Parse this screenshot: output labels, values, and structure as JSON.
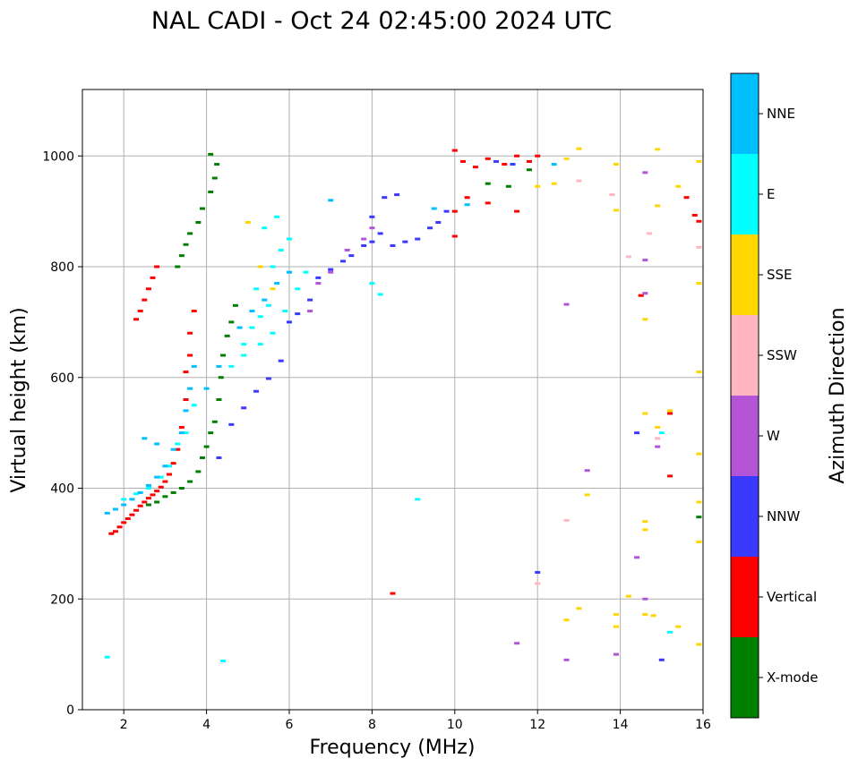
{
  "chart_data": {
    "type": "scatter",
    "title": "NAL CADI - Oct 24 02:45:00 2024 UTC",
    "xlabel": "Frequency (MHz)",
    "ylabel": "Virtual height (km)",
    "xlim": [
      1,
      16
    ],
    "ylim": [
      0,
      1120
    ],
    "xticks": [
      2,
      4,
      6,
      8,
      10,
      12,
      14,
      16
    ],
    "yticks": [
      0,
      200,
      400,
      600,
      800,
      1000
    ],
    "grid": true,
    "colorbar": {
      "title": "Azimuth Direction",
      "categories": [
        {
          "label": "X-mode",
          "color": "#008000"
        },
        {
          "label": "Vertical",
          "color": "#ff0000"
        },
        {
          "label": "NNW",
          "color": "#3a3aff"
        },
        {
          "label": "W",
          "color": "#b455d8"
        },
        {
          "label": "SSW",
          "color": "#ffb6c1"
        },
        {
          "label": "SSE",
          "color": "#ffd700"
        },
        {
          "label": "E",
          "color": "#00ffff"
        },
        {
          "label": "NNE",
          "color": "#00bfff"
        }
      ]
    },
    "series": [
      {
        "name": "X-mode",
        "points": [
          [
            2.6,
            370
          ],
          [
            2.8,
            375
          ],
          [
            3.0,
            385
          ],
          [
            3.2,
            392
          ],
          [
            3.4,
            400
          ],
          [
            3.6,
            412
          ],
          [
            3.8,
            430
          ],
          [
            3.9,
            455
          ],
          [
            4.0,
            475
          ],
          [
            4.1,
            500
          ],
          [
            4.2,
            520
          ],
          [
            4.3,
            560
          ],
          [
            4.35,
            600
          ],
          [
            4.4,
            640
          ],
          [
            4.5,
            675
          ],
          [
            4.6,
            700
          ],
          [
            4.7,
            730
          ],
          [
            3.4,
            820
          ],
          [
            3.5,
            840
          ],
          [
            3.6,
            860
          ],
          [
            3.3,
            800
          ],
          [
            3.8,
            880
          ],
          [
            3.9,
            905
          ],
          [
            4.1,
            935
          ],
          [
            4.2,
            960
          ],
          [
            4.25,
            985
          ],
          [
            4.1,
            1003
          ],
          [
            11.3,
            945
          ],
          [
            11.8,
            975
          ],
          [
            10.8,
            950
          ],
          [
            15.9,
            348
          ]
        ]
      },
      {
        "name": "Vertical",
        "points": [
          [
            1.7,
            318
          ],
          [
            1.8,
            322
          ],
          [
            1.9,
            330
          ],
          [
            2.0,
            338
          ],
          [
            2.1,
            345
          ],
          [
            2.2,
            352
          ],
          [
            2.3,
            360
          ],
          [
            2.4,
            368
          ],
          [
            2.5,
            375
          ],
          [
            2.6,
            382
          ],
          [
            2.7,
            388
          ],
          [
            2.8,
            395
          ],
          [
            2.9,
            402
          ],
          [
            3.0,
            412
          ],
          [
            3.1,
            425
          ],
          [
            3.2,
            445
          ],
          [
            3.3,
            470
          ],
          [
            3.4,
            510
          ],
          [
            3.5,
            560
          ],
          [
            3.5,
            610
          ],
          [
            3.6,
            640
          ],
          [
            3.6,
            680
          ],
          [
            3.7,
            720
          ],
          [
            2.3,
            705
          ],
          [
            2.4,
            720
          ],
          [
            2.5,
            740
          ],
          [
            2.6,
            760
          ],
          [
            2.7,
            780
          ],
          [
            2.8,
            800
          ],
          [
            8.5,
            210
          ],
          [
            10.0,
            1010
          ],
          [
            10.2,
            990
          ],
          [
            10.5,
            980
          ],
          [
            10.8,
            995
          ],
          [
            11.2,
            985
          ],
          [
            11.5,
            1000
          ],
          [
            11.8,
            990
          ],
          [
            12.0,
            1000
          ],
          [
            10.0,
            900
          ],
          [
            10.3,
            925
          ],
          [
            10.8,
            915
          ],
          [
            11.5,
            900
          ],
          [
            10.0,
            855
          ],
          [
            15.2,
            535
          ],
          [
            15.2,
            422
          ],
          [
            15.6,
            925
          ],
          [
            15.8,
            893
          ],
          [
            15.9,
            882
          ],
          [
            14.5,
            748
          ]
        ]
      },
      {
        "name": "NNW",
        "points": [
          [
            4.3,
            455
          ],
          [
            4.6,
            515
          ],
          [
            4.9,
            545
          ],
          [
            5.2,
            575
          ],
          [
            5.5,
            598
          ],
          [
            5.8,
            630
          ],
          [
            6.0,
            700
          ],
          [
            6.2,
            715
          ],
          [
            6.5,
            740
          ],
          [
            6.7,
            780
          ],
          [
            7.0,
            795
          ],
          [
            7.3,
            810
          ],
          [
            7.5,
            820
          ],
          [
            7.8,
            838
          ],
          [
            8.0,
            845
          ],
          [
            8.2,
            860
          ],
          [
            8.5,
            838
          ],
          [
            8.8,
            845
          ],
          [
            9.1,
            850
          ],
          [
            9.4,
            870
          ],
          [
            9.6,
            880
          ],
          [
            9.8,
            900
          ],
          [
            8.0,
            890
          ],
          [
            8.3,
            925
          ],
          [
            8.6,
            930
          ],
          [
            12.0,
            248
          ],
          [
            14.4,
            500
          ],
          [
            15.0,
            90
          ],
          [
            11.0,
            990
          ],
          [
            11.4,
            985
          ]
        ]
      },
      {
        "name": "W",
        "points": [
          [
            6.5,
            720
          ],
          [
            6.7,
            770
          ],
          [
            7.0,
            790
          ],
          [
            7.4,
            830
          ],
          [
            7.8,
            850
          ],
          [
            8.0,
            870
          ],
          [
            12.7,
            732
          ],
          [
            13.2,
            432
          ],
          [
            14.4,
            275
          ],
          [
            14.6,
            200
          ],
          [
            14.9,
            475
          ],
          [
            11.5,
            120
          ],
          [
            12.7,
            90
          ],
          [
            13.9,
            100
          ],
          [
            14.6,
            752
          ],
          [
            14.6,
            812
          ],
          [
            14.6,
            970
          ]
        ]
      },
      {
        "name": "SSW",
        "points": [
          [
            12.7,
            342
          ],
          [
            12.0,
            228
          ],
          [
            13.0,
            955
          ],
          [
            13.8,
            930
          ],
          [
            14.2,
            818
          ],
          [
            14.7,
            860
          ],
          [
            15.9,
            835
          ],
          [
            14.9,
            490
          ]
        ]
      },
      {
        "name": "SSE",
        "points": [
          [
            13.0,
            1013
          ],
          [
            12.7,
            995
          ],
          [
            13.9,
            985
          ],
          [
            14.9,
            1012
          ],
          [
            15.4,
            945
          ],
          [
            15.9,
            990
          ],
          [
            15.9,
            770
          ],
          [
            15.9,
            610
          ],
          [
            15.9,
            462
          ],
          [
            15.9,
            375
          ],
          [
            15.9,
            303
          ],
          [
            15.9,
            118
          ],
          [
            15.4,
            150
          ],
          [
            14.6,
            340
          ],
          [
            14.6,
            325
          ],
          [
            13.2,
            388
          ],
          [
            13.9,
            172
          ],
          [
            13.9,
            150
          ],
          [
            14.6,
            172
          ],
          [
            14.2,
            205
          ],
          [
            15.2,
            540
          ],
          [
            14.9,
            510
          ],
          [
            14.6,
            535
          ],
          [
            14.8,
            170
          ],
          [
            12.7,
            162
          ],
          [
            13.0,
            183
          ],
          [
            14.6,
            705
          ],
          [
            14.9,
            910
          ],
          [
            13.9,
            902
          ],
          [
            12.0,
            945
          ],
          [
            12.4,
            950
          ],
          [
            5.0,
            880
          ],
          [
            5.3,
            800
          ],
          [
            5.6,
            760
          ]
        ]
      },
      {
        "name": "E",
        "points": [
          [
            1.6,
            95
          ],
          [
            4.4,
            88
          ],
          [
            9.1,
            380
          ],
          [
            15.2,
            140
          ],
          [
            15.0,
            500
          ],
          [
            4.9,
            660
          ],
          [
            5.1,
            690
          ],
          [
            5.3,
            710
          ],
          [
            5.5,
            730
          ],
          [
            5.2,
            760
          ],
          [
            5.6,
            800
          ],
          [
            5.8,
            830
          ],
          [
            6.0,
            850
          ],
          [
            5.4,
            870
          ],
          [
            5.7,
            890
          ],
          [
            4.6,
            620
          ],
          [
            4.9,
            640
          ],
          [
            5.3,
            660
          ],
          [
            5.6,
            680
          ],
          [
            5.9,
            720
          ],
          [
            6.2,
            760
          ],
          [
            6.4,
            790
          ],
          [
            8.2,
            750
          ],
          [
            8.0,
            770
          ],
          [
            2.0,
            380
          ],
          [
            2.3,
            390
          ],
          [
            2.6,
            400
          ],
          [
            2.9,
            420
          ],
          [
            3.1,
            440
          ],
          [
            3.3,
            480
          ],
          [
            3.5,
            500
          ],
          [
            3.7,
            550
          ]
        ]
      },
      {
        "name": "NNE",
        "points": [
          [
            1.6,
            355
          ],
          [
            1.8,
            362
          ],
          [
            2.0,
            370
          ],
          [
            2.2,
            380
          ],
          [
            2.4,
            392
          ],
          [
            2.6,
            405
          ],
          [
            2.8,
            420
          ],
          [
            3.0,
            440
          ],
          [
            3.2,
            470
          ],
          [
            3.4,
            500
          ],
          [
            3.5,
            540
          ],
          [
            3.6,
            580
          ],
          [
            3.7,
            620
          ],
          [
            2.5,
            490
          ],
          [
            2.8,
            480
          ],
          [
            4.8,
            690
          ],
          [
            5.1,
            720
          ],
          [
            5.4,
            740
          ],
          [
            5.7,
            770
          ],
          [
            6.0,
            790
          ],
          [
            4.0,
            580
          ],
          [
            4.3,
            620
          ],
          [
            7.0,
            920
          ],
          [
            9.5,
            905
          ],
          [
            10.3,
            912
          ],
          [
            12.4,
            985
          ]
        ]
      }
    ]
  }
}
